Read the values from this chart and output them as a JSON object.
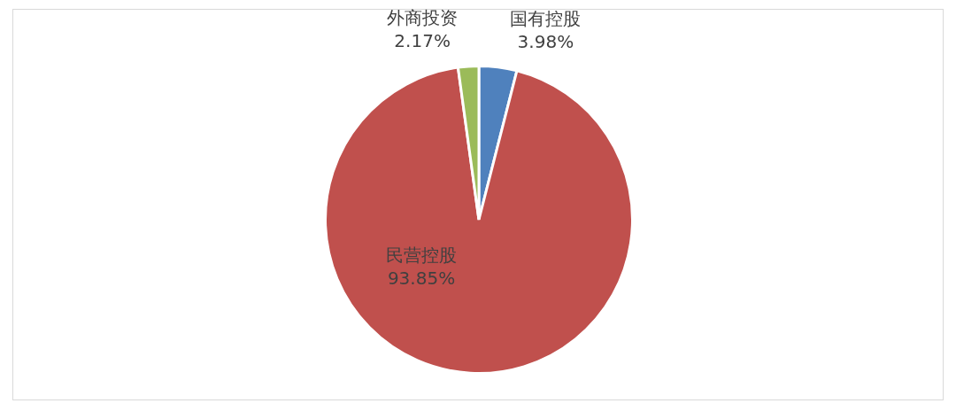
{
  "chart_data": {
    "type": "pie",
    "categories": [
      "国有控股",
      "民营控股",
      "外商投资"
    ],
    "values": [
      3.98,
      93.85,
      2.17
    ],
    "colors": [
      "#4f81bd",
      "#c0504d",
      "#9bbb59"
    ],
    "value_labels": [
      "3.98%",
      "93.85%",
      "2.17%"
    ],
    "legend": false
  }
}
